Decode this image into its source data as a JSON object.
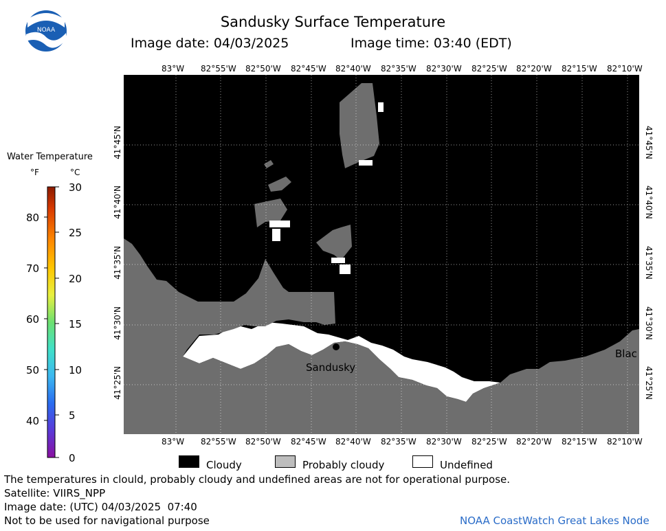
{
  "header": {
    "title": "Sandusky Surface Temperature",
    "image_date": "Image date: 04/03/2025",
    "image_time": "Image time: 03:40 (EDT)",
    "logo_text": "NOAA"
  },
  "colorbar": {
    "title": "Water Temperature",
    "unit_f": "°F",
    "unit_c": "°C",
    "f_ticks": [
      "80",
      "70",
      "60",
      "50",
      "40"
    ],
    "c_ticks": [
      "30",
      "25",
      "20",
      "15",
      "10",
      "5",
      "0"
    ]
  },
  "map": {
    "lon_labels": [
      "83°W",
      "82°55'W",
      "82°50'W",
      "82°45'W",
      "82°40'W",
      "82°35'W",
      "82°30'W",
      "82°25'W",
      "82°20'W",
      "82°15'W",
      "82°10'W"
    ],
    "lat_labels": [
      "41°45'N",
      "41°40'N",
      "41°35'N",
      "41°30'N",
      "41°25'N"
    ],
    "places": [
      {
        "name": "Sandusky"
      },
      {
        "name": "Blac"
      }
    ],
    "colors": {
      "cloudy": "#000000",
      "probably_cloudy": "#6e6e6e",
      "undefined": "#ffffff"
    }
  },
  "legend": {
    "cloudy": "Cloudy",
    "probably_cloudy": "Probably cloudy",
    "undefined": "Undefined"
  },
  "footer": {
    "disclaimer": "The temperatures in clould, probably cloudy and undefined areas are not for operational purpose.",
    "satellite": "Satellite: VIIRS_NPP",
    "utc_date": "Image date: (UTC) 04/03/2025  07:40",
    "nav_note": "Not to be used for navigational purpose",
    "credit": "NOAA CoastWatch Great Lakes Node"
  }
}
